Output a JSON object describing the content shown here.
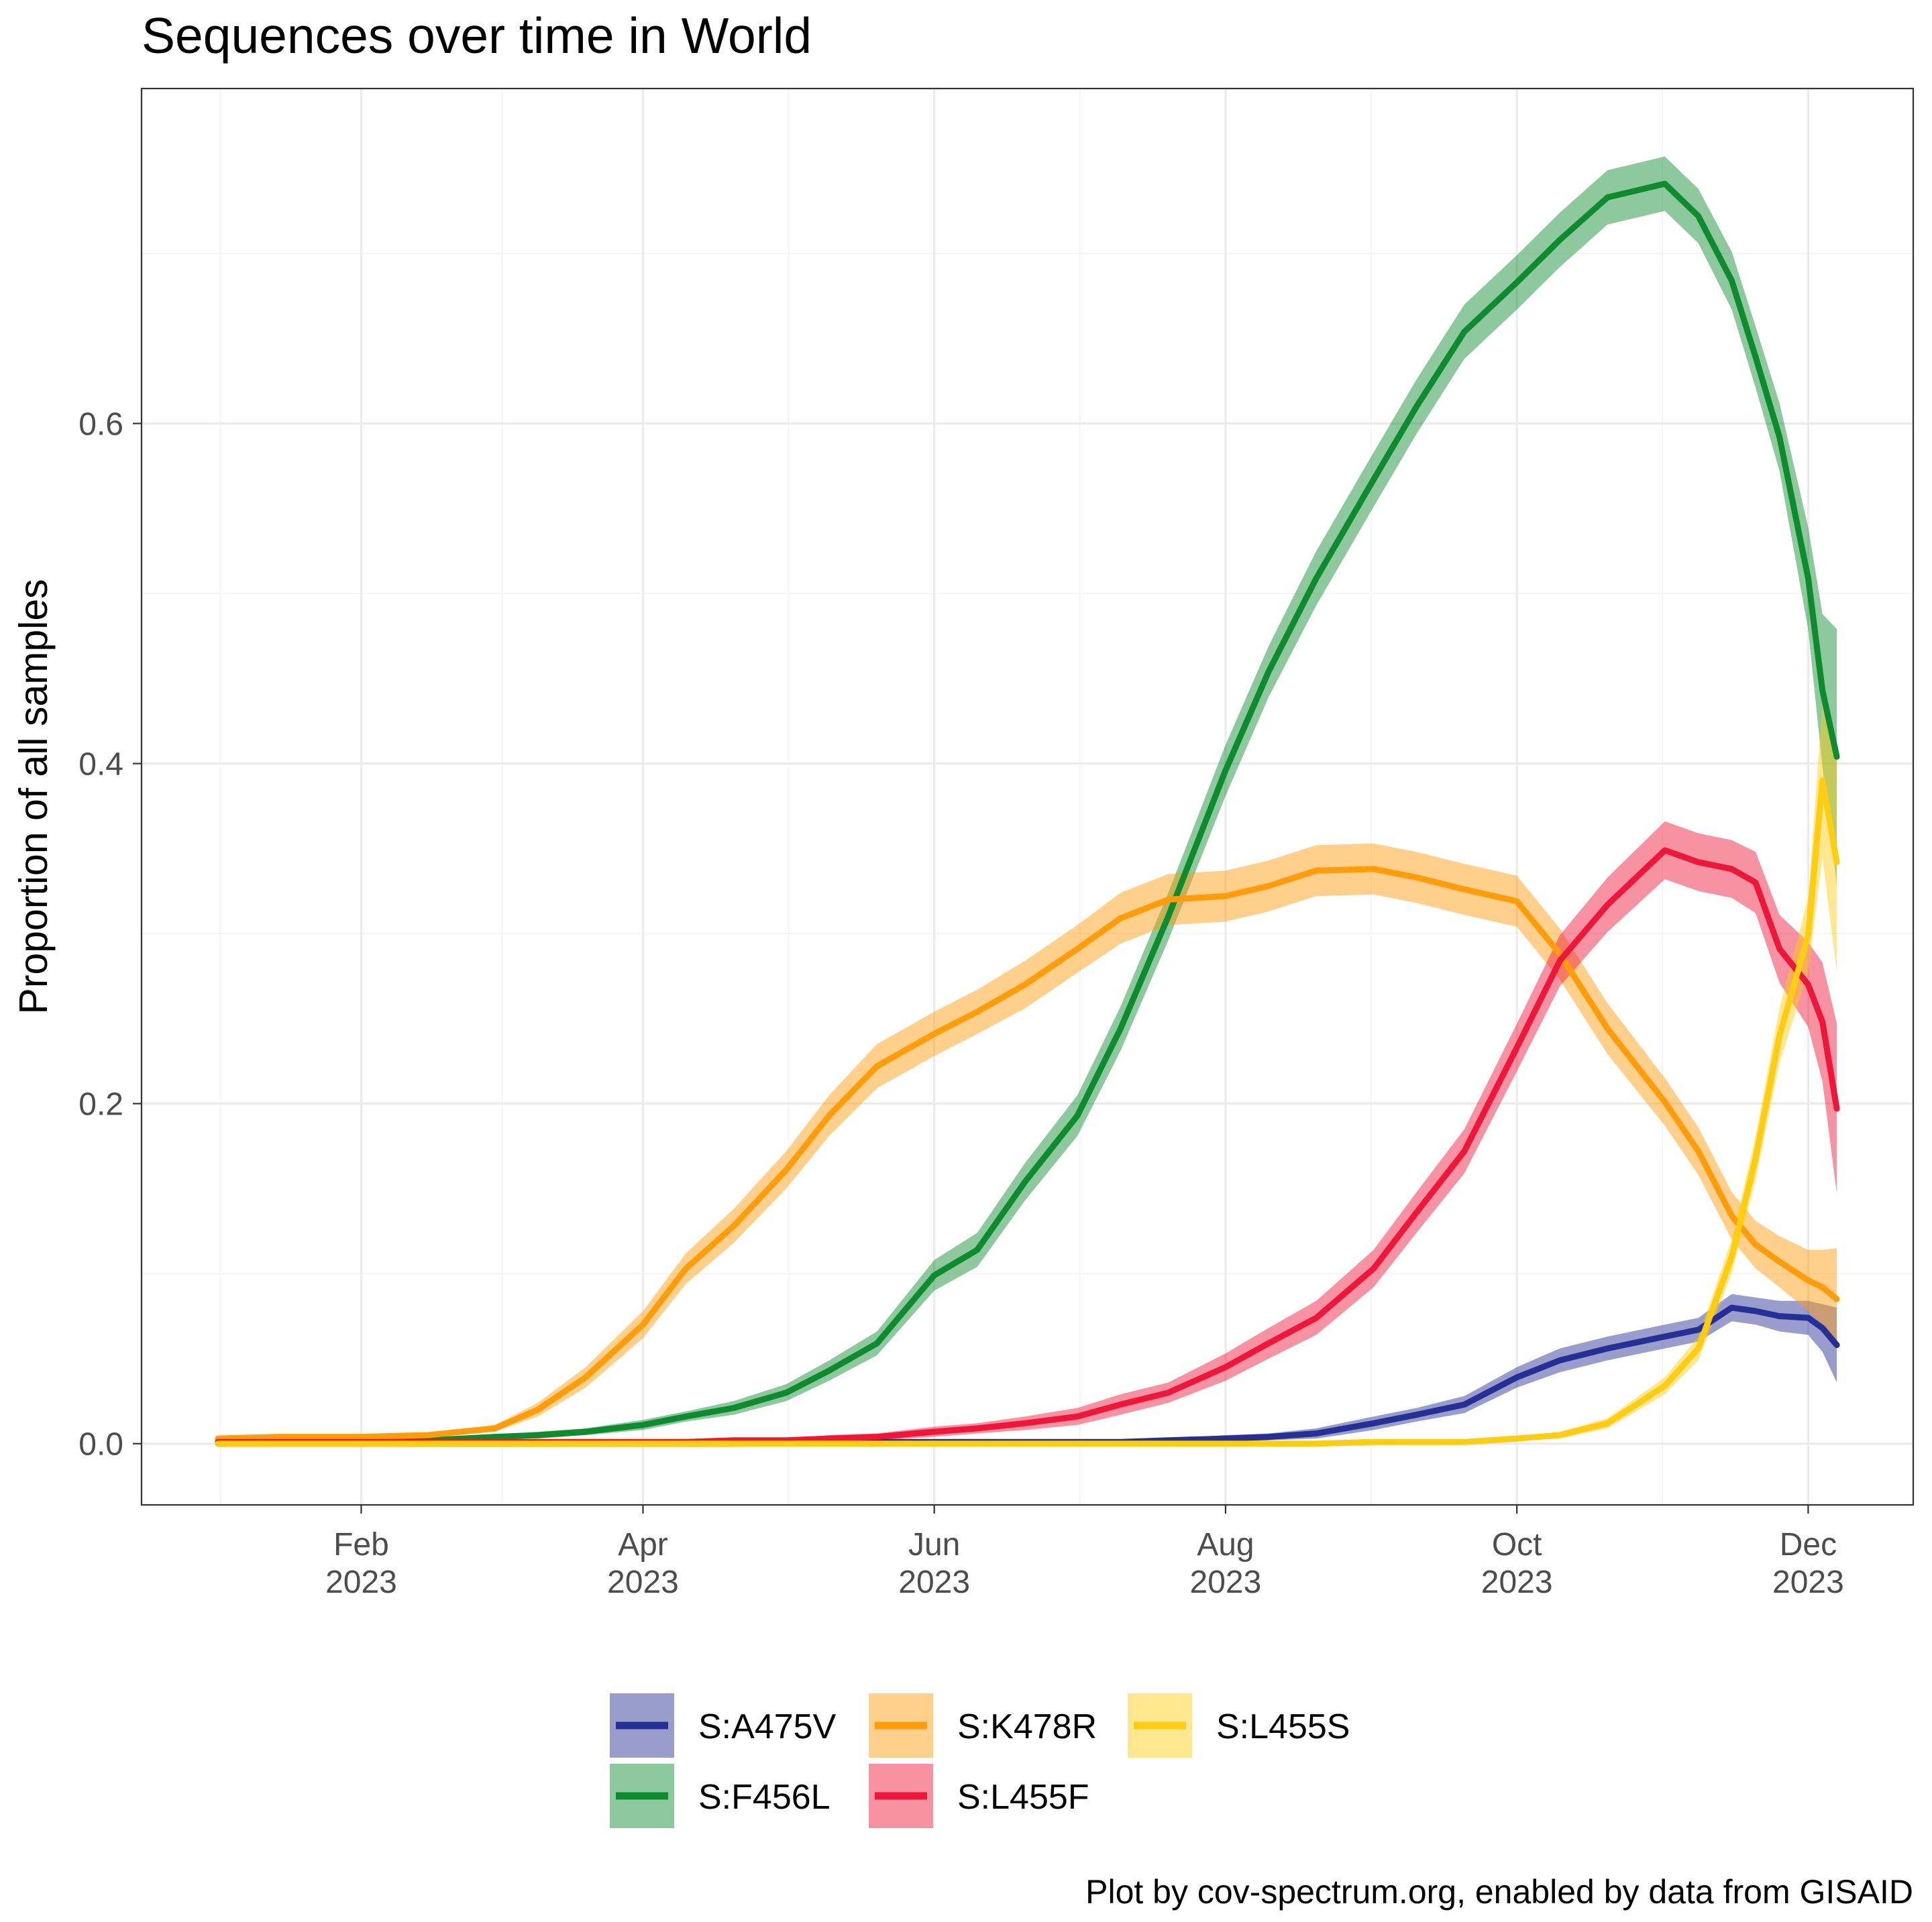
{
  "chart_data": {
    "type": "line",
    "title": "Sequences over time in World",
    "ylabel": "Proportion of all samples",
    "caption": "Plot by cov-spectrum.org, enabled by data from GISAID",
    "xlim": [
      "2022-12-17",
      "2023-12-23"
    ],
    "ylim": [
      -0.036,
      0.797
    ],
    "grid": true,
    "legend_position": "bottom",
    "x_ticks": [
      {
        "date": "2023-02-01",
        "month": "Feb",
        "year": "2023"
      },
      {
        "date": "2023-04-01",
        "month": "Apr",
        "year": "2023"
      },
      {
        "date": "2023-06-01",
        "month": "Jun",
        "year": "2023"
      },
      {
        "date": "2023-08-01",
        "month": "Aug",
        "year": "2023"
      },
      {
        "date": "2023-10-01",
        "month": "Oct",
        "year": "2023"
      },
      {
        "date": "2023-12-01",
        "month": "Dec",
        "year": "2023"
      }
    ],
    "y_ticks": [
      {
        "value": 0.0,
        "label": "0.0"
      },
      {
        "value": 0.2,
        "label": "0.2"
      },
      {
        "value": 0.4,
        "label": "0.4"
      },
      {
        "value": 0.6,
        "label": "0.6"
      }
    ],
    "x": [
      "2023-01-02",
      "2023-01-15",
      "2023-02-01",
      "2023-02-15",
      "2023-03-01",
      "2023-03-10",
      "2023-03-20",
      "2023-04-01",
      "2023-04-10",
      "2023-04-20",
      "2023-05-01",
      "2023-05-10",
      "2023-05-20",
      "2023-06-01",
      "2023-06-10",
      "2023-06-20",
      "2023-07-01",
      "2023-07-10",
      "2023-07-20",
      "2023-08-01",
      "2023-08-10",
      "2023-08-20",
      "2023-09-01",
      "2023-09-10",
      "2023-09-20",
      "2023-10-01",
      "2023-10-10",
      "2023-10-20",
      "2023-11-01",
      "2023-11-08",
      "2023-11-15",
      "2023-11-20",
      "2023-11-25",
      "2023-12-01",
      "2023-12-04",
      "2023-12-07"
    ],
    "series": [
      {
        "name": "S:A475V",
        "color": "#262f93",
        "values": [
          0,
          0,
          0,
          0,
          0,
          0,
          0,
          0,
          0,
          0,
          0.001,
          0.001,
          0.001,
          0.001,
          0.001,
          0.001,
          0.001,
          0.001,
          0.002,
          0.003,
          0.004,
          0.006,
          0.012,
          0.017,
          0.023,
          0.039,
          0.049,
          0.056,
          0.063,
          0.067,
          0.08,
          0.078,
          0.075,
          0.074,
          0.068,
          0.058
        ],
        "ci_halfwidth": [
          0.001,
          0.001,
          0.001,
          0.001,
          0.001,
          0.001,
          0.001,
          0.001,
          0.001,
          0.001,
          0.001,
          0.001,
          0.001,
          0.001,
          0.001,
          0.001,
          0.001,
          0.001,
          0.001,
          0.002,
          0.002,
          0.003,
          0.004,
          0.004,
          0.005,
          0.006,
          0.007,
          0.007,
          0.007,
          0.007,
          0.008,
          0.008,
          0.009,
          0.01,
          0.014,
          0.022
        ]
      },
      {
        "name": "S:F456L",
        "color": "#0f8b2f",
        "values": [
          0.001,
          0.001,
          0.001,
          0.002,
          0.004,
          0.005,
          0.007,
          0.011,
          0.016,
          0.021,
          0.03,
          0.043,
          0.059,
          0.099,
          0.114,
          0.154,
          0.193,
          0.244,
          0.31,
          0.396,
          0.454,
          0.509,
          0.567,
          0.61,
          0.654,
          0.683,
          0.708,
          0.733,
          0.741,
          0.722,
          0.684,
          0.639,
          0.592,
          0.509,
          0.443,
          0.404
        ],
        "ci_halfwidth": [
          0.001,
          0.001,
          0.001,
          0.001,
          0.001,
          0.002,
          0.002,
          0.003,
          0.003,
          0.004,
          0.005,
          0.006,
          0.007,
          0.009,
          0.01,
          0.011,
          0.012,
          0.013,
          0.014,
          0.015,
          0.015,
          0.016,
          0.016,
          0.016,
          0.016,
          0.016,
          0.016,
          0.016,
          0.016,
          0.016,
          0.017,
          0.018,
          0.02,
          0.03,
          0.045,
          0.075
        ]
      },
      {
        "name": "S:K478R",
        "color": "#fe9c0a",
        "values": [
          0.003,
          0.004,
          0.004,
          0.005,
          0.009,
          0.02,
          0.039,
          0.07,
          0.103,
          0.128,
          0.161,
          0.193,
          0.222,
          0.241,
          0.254,
          0.27,
          0.291,
          0.309,
          0.32,
          0.322,
          0.328,
          0.337,
          0.338,
          0.333,
          0.326,
          0.319,
          0.288,
          0.244,
          0.201,
          0.172,
          0.134,
          0.117,
          0.107,
          0.096,
          0.092,
          0.085
        ],
        "ci_halfwidth": [
          0.001,
          0.001,
          0.001,
          0.001,
          0.002,
          0.004,
          0.006,
          0.008,
          0.009,
          0.01,
          0.011,
          0.012,
          0.013,
          0.013,
          0.013,
          0.014,
          0.014,
          0.015,
          0.015,
          0.015,
          0.015,
          0.015,
          0.015,
          0.015,
          0.015,
          0.015,
          0.015,
          0.015,
          0.014,
          0.014,
          0.014,
          0.014,
          0.015,
          0.018,
          0.022,
          0.03
        ]
      },
      {
        "name": "S:L455F",
        "color": "#ee1739",
        "values": [
          0.001,
          0.001,
          0.001,
          0.001,
          0.001,
          0.001,
          0.001,
          0.001,
          0.001,
          0.002,
          0.002,
          0.003,
          0.004,
          0.007,
          0.009,
          0.012,
          0.016,
          0.023,
          0.03,
          0.045,
          0.059,
          0.074,
          0.103,
          0.136,
          0.172,
          0.233,
          0.284,
          0.317,
          0.349,
          0.342,
          0.338,
          0.33,
          0.291,
          0.27,
          0.248,
          0.197
        ],
        "ci_halfwidth": [
          0.001,
          0.001,
          0.001,
          0.001,
          0.001,
          0.001,
          0.001,
          0.001,
          0.001,
          0.001,
          0.001,
          0.002,
          0.002,
          0.003,
          0.003,
          0.004,
          0.005,
          0.006,
          0.006,
          0.008,
          0.009,
          0.01,
          0.011,
          0.012,
          0.013,
          0.014,
          0.015,
          0.016,
          0.017,
          0.017,
          0.017,
          0.018,
          0.02,
          0.025,
          0.035,
          0.05
        ]
      },
      {
        "name": "S:L455S",
        "color": "#fccd10",
        "values": [
          0,
          0,
          0,
          0,
          0,
          0,
          0,
          0,
          0,
          0,
          0,
          0,
          0,
          0,
          0,
          0,
          0,
          0,
          0,
          0,
          0,
          0,
          0.001,
          0.001,
          0.001,
          0.003,
          0.005,
          0.012,
          0.034,
          0.056,
          0.11,
          0.168,
          0.24,
          0.299,
          0.39,
          0.342
        ],
        "ci_halfwidth": [
          0.001,
          0.001,
          0.001,
          0.001,
          0.001,
          0.001,
          0.001,
          0.001,
          0.001,
          0.001,
          0.001,
          0.001,
          0.001,
          0.001,
          0.001,
          0.001,
          0.001,
          0.001,
          0.001,
          0.001,
          0.001,
          0.001,
          0.001,
          0.001,
          0.001,
          0.001,
          0.002,
          0.003,
          0.005,
          0.007,
          0.01,
          0.013,
          0.016,
          0.022,
          0.045,
          0.065
        ]
      }
    ]
  }
}
